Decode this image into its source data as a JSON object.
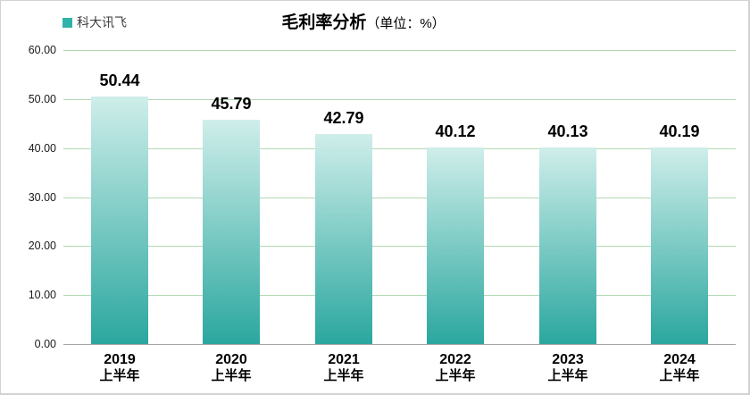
{
  "window": {
    "background": "#ffffff",
    "border_color": "#d2d2d2"
  },
  "legend": {
    "series_label": "科大讯飞",
    "swatch_color": "#2fb2a9"
  },
  "title": {
    "main": "毛利率分析",
    "unit": "（单位：%）"
  },
  "chart_data": {
    "type": "bar",
    "title": "毛利率分析（单位：%）",
    "legend_entries": [
      "科大讯飞"
    ],
    "legend_position": "top-left",
    "categories": [
      "2019",
      "2020",
      "2021",
      "2022",
      "2023",
      "2024"
    ],
    "category_sublabel": "上半年",
    "series": [
      {
        "name": "科大讯飞",
        "values": [
          50.44,
          45.79,
          42.79,
          40.12,
          40.13,
          40.19
        ]
      }
    ],
    "value_labels": [
      "50.44",
      "45.79",
      "42.79",
      "40.12",
      "40.13",
      "40.19"
    ],
    "xlabel": "",
    "ylabel": "",
    "ylim": [
      0,
      60
    ],
    "ytick_step": 10,
    "ytick_labels": [
      "60.00",
      "50.00",
      "40.00",
      "30.00",
      "20.00",
      "10.00",
      "0.00"
    ],
    "grid": true,
    "colors": {
      "bar_gradient_top": "#cfeeea",
      "bar_gradient_bottom": "#2aa79f",
      "gridline": "#b1dab1",
      "axis_line": "#a6a6a6",
      "text": "#000000"
    }
  }
}
